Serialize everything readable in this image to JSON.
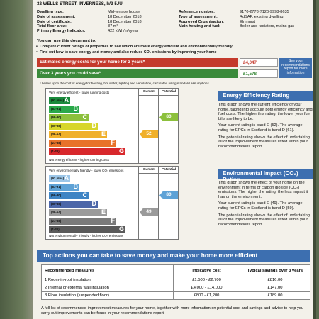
{
  "address": "32 WELLS STREET, INVERNESS, IV3 5JU",
  "info_left": [
    {
      "k": "Dwelling type:",
      "v": "Mid-terrace house"
    },
    {
      "k": "Date of assessment:",
      "v": "18 December 2018"
    },
    {
      "k": "Date of certificate:",
      "v": "18 December 2018"
    },
    {
      "k": "Total floor area:",
      "v": "87 m²"
    },
    {
      "k": "Primary Energy Indicator:",
      "v": "422 kWh/m²/year"
    }
  ],
  "info_right": [
    {
      "k": "Reference number:",
      "v": "9170-2778-7120-9998-8635"
    },
    {
      "k": "Type of assessment:",
      "v": "RdSAP, existing dwelling"
    },
    {
      "k": "Approved Organisation:",
      "v": "Elmhurst"
    },
    {
      "k": "Main heating and fuel:",
      "v": "Boiler and radiators, mains gas"
    }
  ],
  "use_heading": "You can use this document to:",
  "bullets": [
    "Compare current ratings of properties to see which are more energy efficient and environmentally friendly",
    "Find out how to save energy and money and also reduce CO₂ emissions by improving your home"
  ],
  "costs": {
    "estimated_label": "Estimated energy costs for your home for 3 years*",
    "estimated_value": "£4,047",
    "save_label": "Over 3 years you could save*",
    "save_value": "£1,578",
    "see_box": "See your recommendations report for more information",
    "footnote": "* based upon the cost of energy for heating, hot water, lighting and ventilation, calculated using standard assumptions"
  },
  "energy_chart": {
    "col_current": "Current",
    "col_potential": "Potential",
    "top_label": "Very energy efficient - lower running costs",
    "bottom_label": "Not energy efficient - higher running costs",
    "bands": [
      {
        "range": "(92 plus)",
        "letter": "A",
        "color": "#1a8a3c"
      },
      {
        "range": "(81-91)",
        "letter": "B",
        "color": "#2aa84a"
      },
      {
        "range": "(69-80)",
        "letter": "C",
        "color": "#8cc03c"
      },
      {
        "range": "(55-68)",
        "letter": "D",
        "color": "#d7d62a"
      },
      {
        "range": "(39-54)",
        "letter": "E",
        "color": "#f0b02a"
      },
      {
        "range": "(21-38)",
        "letter": "F",
        "color": "#e8722a"
      },
      {
        "range": "(1-20)",
        "letter": "G",
        "color": "#d8282c"
      }
    ],
    "current": 52,
    "current_band": 4,
    "current_color": "#f0b02a",
    "potential": 80,
    "potential_band": 2,
    "potential_color": "#8cc03c"
  },
  "impact_chart": {
    "col_current": "Current",
    "col_potential": "Potential",
    "top_label": "Very environmentally friendly - lower CO₂ emissions",
    "bottom_label": "Not environmentally friendly - higher CO₂ emissions",
    "bands": [
      {
        "range": "(92 plus)",
        "letter": "A",
        "color": "#9cc6e8"
      },
      {
        "range": "(81-91)",
        "letter": "B",
        "color": "#5ea2d6"
      },
      {
        "range": "(69-80)",
        "letter": "C",
        "color": "#3e84c4"
      },
      {
        "range": "(55-68)",
        "letter": "D",
        "color": "#4c66a8"
      },
      {
        "range": "(39-54)",
        "letter": "E",
        "color": "#9a9a9a"
      },
      {
        "range": "(21-38)",
        "letter": "F",
        "color": "#7a7a7a"
      },
      {
        "range": "(1-20)",
        "letter": "G",
        "color": "#5a5a5a"
      }
    ],
    "current": 49,
    "current_band": 4,
    "current_color": "#9a9a9a",
    "potential": 80,
    "potential_band": 2,
    "potential_color": "#5ea2d6"
  },
  "eer_panel": {
    "title": "Energy Efficiency Rating",
    "p1": "This graph shows the current efficiency of your home, taking into account both energy efficiency and fuel costs. The higher this rating, the lower your fuel bills are likely to be.",
    "p2": "Your current rating is band E (52). The average rating for EPCs in Scotland is band D (61).",
    "p3": "The potential rating shows the effect of undertaking all of the improvement measures listed within your recommendations report."
  },
  "eir_panel": {
    "title": "Environmental Impact (CO₂) Rating",
    "p1": "This graph shows the effect of your home on the environment in terms of carbon dioxide (CO₂) emissions. The higher the rating, the less impact it has on the environment.",
    "p2": "Your current rating is band E (49). The average rating for EPCs in Scotland is band D (59).",
    "p3": "The potential rating shows the effect of undertaking all of the improvement measures listed within your recommendations report."
  },
  "actions": {
    "title": "Top actions you can take to save money and make your home more efficient",
    "headers": [
      "Recommended measures",
      "Indicative cost",
      "Typical savings over 3 years"
    ],
    "rows": [
      {
        "measure": "1 Room-in-roof insulation",
        "cost": "£1,500 - £2,700",
        "saving": "£816.00"
      },
      {
        "measure": "2 Internal or external wall insulation",
        "cost": "£4,000 - £14,000",
        "saving": "£147.00"
      },
      {
        "measure": "3 Floor insulation (suspended floor)",
        "cost": "£800 - £1,200",
        "saving": "£189.00"
      }
    ],
    "footer": "A full list of recommended improvement measures for your home, together with more information on potential cost and savings and advice to help you carry out improvements can be found in your recommendations report."
  }
}
